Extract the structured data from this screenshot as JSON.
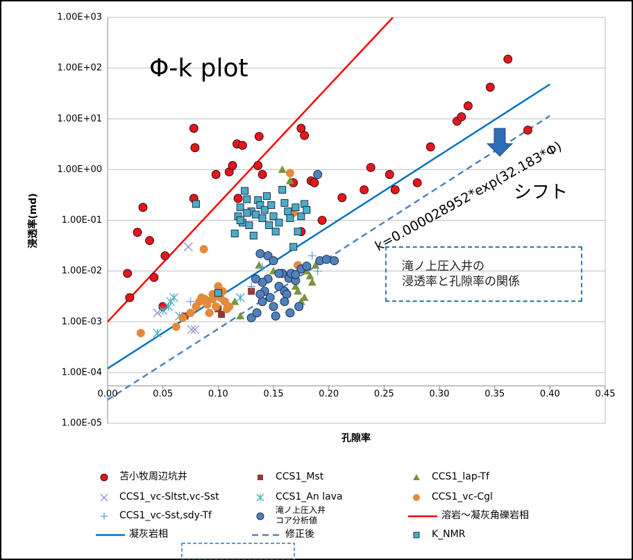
{
  "chart_data": {
    "type": "scatter",
    "annotations": [
      "Φ-k plot",
      "k=0.000028952*exp(32.183*Φ)",
      "シフト",
      "滝ノ上圧入井の\n浸透率と孔隙率の関係"
    ],
    "x_label": "孔隙率",
    "y_label": "浸透率(md)",
    "xlim": [
      0,
      0.45
    ],
    "ylim": [
      1e-05,
      1000
    ],
    "log_y": true,
    "grid": true,
    "xticks": [
      {
        "value": 0,
        "label": "0.00"
      },
      0.05,
      {
        "value": 0.1,
        "label": "0.10"
      },
      0.15,
      {
        "value": 0.2,
        "label": "0.20"
      },
      0.25,
      {
        "value": 0.3,
        "label": "0.30"
      },
      0.35,
      {
        "value": 0.4,
        "label": "0.40"
      },
      0.45
    ],
    "yticks": [
      {
        "value": 1e-05,
        "label": "1.00E-05"
      },
      {
        "value": 0.0001,
        "label": "1.00E-04"
      },
      {
        "value": 0.001,
        "label": "1.00E-03"
      },
      {
        "value": 0.01,
        "label": "1.00E-02"
      },
      {
        "value": 0.1,
        "label": "1.00E-01"
      },
      {
        "value": 1,
        "label": "1.00E+00"
      },
      {
        "value": 10,
        "label": "1.00E+01"
      },
      {
        "value": 100,
        "label": "1.00E+02"
      },
      {
        "value": 1000,
        "label": "1.00E+03"
      }
    ],
    "series": [
      {
        "name": "苫小牧周辺坑井",
        "marker": "circle",
        "color": "#e8141b",
        "x": [
          0.018,
          0.02,
          0.027,
          0.032,
          0.038,
          0.042,
          0.05,
          0.052,
          0.078,
          0.079,
          0.078,
          0.098,
          0.11,
          0.113,
          0.117,
          0.122,
          0.118,
          0.137,
          0.136,
          0.14,
          0.168,
          0.175,
          0.178,
          0.184,
          0.187,
          0.194,
          0.212,
          0.232,
          0.238,
          0.255,
          0.26,
          0.28,
          0.292,
          0.316,
          0.32,
          0.326,
          0.346,
          0.362,
          0.38,
          0.175
        ],
        "values": [
          0.009,
          0.003,
          0.058,
          0.18,
          0.04,
          0.0075,
          0.002,
          0.02,
          6.5,
          2.7,
          0.27,
          0.8,
          0.9,
          1.2,
          3.2,
          3,
          0.27,
          4.5,
          1.2,
          0.8,
          0.55,
          6.5,
          4.7,
          0.6,
          0.55,
          0.1,
          0.28,
          0.4,
          1.1,
          0.8,
          0.4,
          0.55,
          2.8,
          9,
          11,
          18,
          42,
          150,
          6,
          0.06
        ]
      },
      {
        "name": "CCS1_Mst",
        "marker": "square",
        "color": "#953735",
        "x": [
          0.07,
          0.1,
          0.103,
          0.13
        ],
        "values": [
          0.0013,
          0.0018,
          0.0014,
          0.004
        ]
      },
      {
        "name": "CCS1_lap-Tf",
        "marker": "triangle",
        "color": "#77933c",
        "x": [
          0.115,
          0.12,
          0.137,
          0.15,
          0.158,
          0.165,
          0.17,
          0.172,
          0.175,
          0.178,
          0.18,
          0.185,
          0.188,
          0.183
        ],
        "values": [
          0.0025,
          0.0013,
          0.013,
          0.01,
          1.0,
          0.6,
          0.005,
          0.004,
          0.0025,
          0.003,
          0.01,
          0.006,
          0.013,
          0.008
        ]
      },
      {
        "name": "CCS1_vc-Sltst,vc-Sst",
        "marker": "x",
        "color": "#9b8bc6",
        "x": [
          0.045,
          0.05,
          0.073,
          0.076,
          0.079
        ],
        "values": [
          0.0015,
          0.0017,
          0.03,
          0.0007,
          0.0007
        ]
      },
      {
        "name": "CCS1_An lava",
        "marker": "asterisk",
        "color": "#4bacc6",
        "x": [
          0.045,
          0.05,
          0.055,
          0.057,
          0.06,
          0.065,
          0.12
        ],
        "values": [
          0.0006,
          0.0017,
          0.002,
          0.0025,
          0.003,
          0.0013,
          0.003
        ]
      },
      {
        "name": "CCS1_vc-Cgl",
        "marker": "circle",
        "color": "#e48a3a",
        "x": [
          0.03,
          0.062,
          0.068,
          0.075,
          0.08,
          0.083,
          0.085,
          0.088,
          0.087,
          0.09,
          0.092,
          0.095,
          0.098,
          0.1,
          0.102,
          0.104,
          0.106,
          0.108,
          0.165,
          0.172,
          0.168,
          0.095,
          0.11
        ],
        "values": [
          0.0006,
          0.0008,
          0.0012,
          0.0015,
          0.002,
          0.0025,
          0.003,
          0.0028,
          0.027,
          0.0022,
          0.0015,
          0.0035,
          0.002,
          0.005,
          0.003,
          0.004,
          0.0025,
          0.0018,
          0.85,
          0.013,
          0.14,
          0.0028,
          0.002
        ]
      },
      {
        "name": "CCS1_vc-Sst,sdy-Tf",
        "marker": "plus",
        "color": "#6a9fd8",
        "x": [
          0.075,
          0.13,
          0.14,
          0.185,
          0.19
        ],
        "values": [
          0.0025,
          0.005,
          0.012,
          0.02,
          0.01
        ]
      },
      {
        "name": "滝ノ上圧入井\nコア分析値",
        "marker": "circle-outlined",
        "color": "#4f81bd",
        "x": [
          0.13,
          0.135,
          0.138,
          0.14,
          0.142,
          0.145,
          0.147,
          0.15,
          0.152,
          0.155,
          0.158,
          0.16,
          0.162,
          0.164,
          0.166,
          0.17,
          0.173,
          0.175,
          0.14,
          0.145,
          0.15,
          0.155,
          0.16,
          0.165,
          0.17,
          0.18,
          0.19,
          0.192,
          0.198,
          0.205,
          0.134,
          0.138
        ],
        "values": [
          0.0012,
          0.0015,
          0.022,
          0.0025,
          0.004,
          0.007,
          0.003,
          0.002,
          0.0013,
          0.005,
          0.009,
          0.004,
          0.0035,
          0.0072,
          0.009,
          0.0065,
          0.002,
          0.011,
          0.006,
          0.02,
          0.016,
          0.009,
          0.0025,
          0.0015,
          0.0085,
          0.0125,
          0.8,
          0.016,
          0.017,
          0.016,
          0.007,
          0.0035
        ]
      },
      {
        "name": "溶岩～凝灰角礫岩相",
        "marker": "line",
        "color": "#ff0000",
        "x": [
          0,
          0.258
        ],
        "values": [
          0.001,
          1000
        ]
      },
      {
        "name": "凝灰岩相",
        "marker": "line",
        "color": "#0070c0",
        "x": [
          0,
          0.4
        ],
        "values": [
          0.00012,
          48
        ]
      },
      {
        "name": "修正後",
        "marker": "dashed",
        "color": "#4f81bd",
        "x": [
          0,
          0.4
        ],
        "values": [
          2.9e-05,
          11.5
        ]
      },
      {
        "name": "K_NMR",
        "marker": "square-outlined",
        "color": "#4bacc6",
        "x": [
          0.08,
          0.1,
          0.115,
          0.118,
          0.12,
          0.122,
          0.124,
          0.126,
          0.128,
          0.13,
          0.132,
          0.134,
          0.136,
          0.138,
          0.14,
          0.142,
          0.144,
          0.146,
          0.148,
          0.15,
          0.152,
          0.155,
          0.158,
          0.16,
          0.163,
          0.165,
          0.168,
          0.17,
          0.172,
          0.175,
          0.178,
          0.18,
          0.12,
          0.126
        ],
        "values": [
          0.21,
          0.0037,
          0.055,
          0.12,
          0.18,
          0.09,
          0.38,
          0.26,
          0.08,
          0.15,
          0.05,
          0.13,
          0.25,
          0.2,
          0.11,
          0.16,
          0.3,
          0.08,
          0.2,
          0.12,
          0.06,
          0.09,
          0.4,
          0.22,
          0.15,
          0.11,
          0.03,
          0.18,
          0.06,
          0.12,
          0.21,
          0.16,
          0.1,
          0.14
        ]
      }
    ]
  }
}
